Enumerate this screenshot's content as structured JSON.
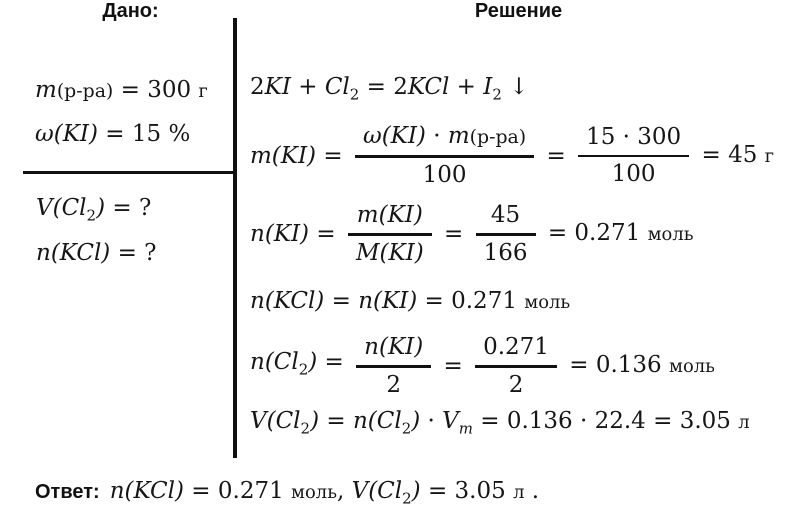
{
  "meta": {
    "language": "ru",
    "background_color": "#ffffff",
    "text_color": "#161616",
    "rule_color": "#111111"
  },
  "given": {
    "title": "Дано:",
    "mass_solution": [
      {
        "s": "mi",
        "t": "m"
      },
      {
        "s": "rm",
        "t": "(р-ра)"
      },
      {
        "s": "mn",
        "t": " = 300 "
      },
      {
        "s": "un",
        "t": "г"
      }
    ],
    "mass_fraction": [
      {
        "s": "mi",
        "t": "ω(KI)"
      },
      {
        "s": "mn",
        "t": " = 15 %"
      }
    ],
    "find_volume": [
      {
        "s": "mi",
        "t": "V(Cl"
      },
      {
        "s": "sub",
        "t": "2"
      },
      {
        "s": "mi",
        "t": ")"
      },
      {
        "s": "mn",
        "t": " = ?"
      }
    ],
    "find_amount": [
      {
        "s": "mi",
        "t": "n(KCl)"
      },
      {
        "s": "mn",
        "t": " = ?"
      }
    ]
  },
  "solution": {
    "title": "Решение",
    "reaction": [
      {
        "s": "mn",
        "t": "2"
      },
      {
        "s": "mi",
        "t": "KI"
      },
      {
        "s": "mn",
        "t": " + "
      },
      {
        "s": "mi",
        "t": "Cl"
      },
      {
        "s": "sub",
        "t": "2"
      },
      {
        "s": "mn",
        "t": " = 2"
      },
      {
        "s": "mi",
        "t": "KCl"
      },
      {
        "s": "mn",
        "t": " + "
      },
      {
        "s": "mi",
        "t": "I"
      },
      {
        "s": "sub",
        "t": "2"
      },
      {
        "s": "mn",
        "t": " ↓"
      }
    ],
    "eq_mass": {
      "lhs": [
        {
          "s": "mi",
          "t": "m(KI)"
        },
        {
          "s": "mn",
          "t": " = "
        }
      ],
      "frac1_num": [
        {
          "s": "mi",
          "t": "ω(KI)"
        },
        {
          "s": "mn",
          "t": " · "
        },
        {
          "s": "mi",
          "t": "m"
        },
        {
          "s": "rm",
          "t": "(р-ра)"
        }
      ],
      "frac1_den": [
        {
          "s": "mn",
          "t": "100"
        }
      ],
      "mid": [
        {
          "s": "mn",
          "t": " = "
        }
      ],
      "frac2_num": [
        {
          "s": "mn",
          "t": "15 · 300"
        }
      ],
      "frac2_den": [
        {
          "s": "mn",
          "t": "100"
        }
      ],
      "rhs": [
        {
          "s": "mn",
          "t": " = 45 "
        },
        {
          "s": "un",
          "t": "г"
        }
      ]
    },
    "eq_amount_ki": {
      "lhs": [
        {
          "s": "mi",
          "t": "n(KI)"
        },
        {
          "s": "mn",
          "t": " = "
        }
      ],
      "frac1_num": [
        {
          "s": "mi",
          "t": "m(KI)"
        }
      ],
      "frac1_den": [
        {
          "s": "mi",
          "t": "M(KI)"
        }
      ],
      "mid": [
        {
          "s": "mn",
          "t": " = "
        }
      ],
      "frac2_num": [
        {
          "s": "mn",
          "t": "45"
        }
      ],
      "frac2_den": [
        {
          "s": "mn",
          "t": "166"
        }
      ],
      "rhs": [
        {
          "s": "mn",
          "t": " = 0.271 "
        },
        {
          "s": "un",
          "t": "моль"
        }
      ]
    },
    "eq_amount_kcl": [
      {
        "s": "mi",
        "t": "n(KCl)"
      },
      {
        "s": "mn",
        "t": " = "
      },
      {
        "s": "mi",
        "t": "n(KI)"
      },
      {
        "s": "mn",
        "t": " = 0.271 "
      },
      {
        "s": "un",
        "t": "моль"
      }
    ],
    "eq_amount_cl2": {
      "lhs": [
        {
          "s": "mi",
          "t": "n(Cl"
        },
        {
          "s": "sub",
          "t": "2"
        },
        {
          "s": "mi",
          "t": ")"
        },
        {
          "s": "mn",
          "t": " = "
        }
      ],
      "frac1_num": [
        {
          "s": "mi",
          "t": "n(KI)"
        }
      ],
      "frac1_den": [
        {
          "s": "mn",
          "t": "2"
        }
      ],
      "mid": [
        {
          "s": "mn",
          "t": " = "
        }
      ],
      "frac2_num": [
        {
          "s": "mn",
          "t": "0.271"
        }
      ],
      "frac2_den": [
        {
          "s": "mn",
          "t": "2"
        }
      ],
      "rhs": [
        {
          "s": "mn",
          "t": " = 0.136 "
        },
        {
          "s": "un",
          "t": "моль"
        }
      ]
    },
    "eq_volume_cl2": [
      {
        "s": "mi",
        "t": "V(Cl"
      },
      {
        "s": "sub",
        "t": "2"
      },
      {
        "s": "mi",
        "t": ")"
      },
      {
        "s": "mn",
        "t": " = "
      },
      {
        "s": "mi",
        "t": "n(Cl"
      },
      {
        "s": "sub",
        "t": "2"
      },
      {
        "s": "mi",
        "t": ")"
      },
      {
        "s": "mn",
        "t": " · "
      },
      {
        "s": "mi",
        "t": "V"
      },
      {
        "s": "subi",
        "t": "m"
      },
      {
        "s": "mn",
        "t": " = 0.136 · 22.4 = 3.05 "
      },
      {
        "s": "un",
        "t": "л"
      }
    ]
  },
  "answer": {
    "label": "Ответ:",
    "tokens": [
      {
        "s": "mi",
        "t": "n(KCl)"
      },
      {
        "s": "mn",
        "t": " = 0.271 "
      },
      {
        "s": "un",
        "t": "моль"
      },
      {
        "s": "mn",
        "t": ", "
      },
      {
        "s": "mi",
        "t": "V(Cl"
      },
      {
        "s": "sub",
        "t": "2"
      },
      {
        "s": "mi",
        "t": ")"
      },
      {
        "s": "mn",
        "t": " = 3.05 "
      },
      {
        "s": "un",
        "t": "л"
      },
      {
        "s": "mn",
        "t": " ."
      }
    ]
  }
}
